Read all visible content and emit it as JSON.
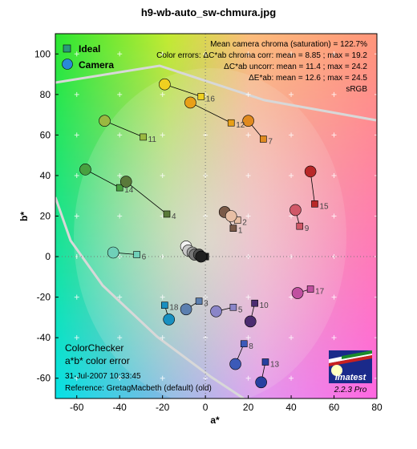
{
  "title": "h9-wb-auto_sw-chmura.jpg",
  "legend": {
    "ideal_label": "Ideal",
    "camera_label": "Camera"
  },
  "stats": {
    "line1": "Mean camera chroma (saturation) = 122.7%",
    "line2": "Color errors: ΔC*ab chroma corr:  mean = 8.85 ;  max = 19.2",
    "line3": "ΔC*ab uncorr:  mean = 11.4 ;  max = 24.2",
    "line4": "ΔE*ab:  mean = 12.6 ;  max = 24.5",
    "line5": "sRGB"
  },
  "bottom_text": {
    "line1": "ColorChecker",
    "line2": "a*b* color error",
    "date": "31-Jul-2007 10:33:45",
    "reference": "Reference: GretagMacbeth (default) (old)"
  },
  "logo": {
    "name": "Imatest",
    "version": "2.2.3  Pro"
  },
  "chart_data": {
    "type": "scatter",
    "title": "h9-wb-auto_sw-chmura.jpg",
    "xlabel": "a*",
    "ylabel": "b*",
    "xlim": [
      -70,
      80
    ],
    "ylim": [
      -70,
      110
    ],
    "x_ticks": [
      -60,
      -40,
      -20,
      0,
      20,
      40,
      60,
      80
    ],
    "y_ticks": [
      -60,
      -40,
      -20,
      0,
      20,
      40,
      60,
      80,
      100
    ],
    "grid": "dotted cross markers",
    "legend_position": "top-left",
    "series": [
      {
        "name": "Ideal",
        "marker": "square"
      },
      {
        "name": "Camera",
        "marker": "circle"
      }
    ],
    "patches": [
      {
        "id": "1",
        "ideal": [
          13,
          14
        ],
        "camera": [
          9,
          22
        ],
        "color": "#7a5a48"
      },
      {
        "id": "2",
        "ideal": [
          15,
          18
        ],
        "camera": [
          12,
          20
        ],
        "color": "#e8bfa5"
      },
      {
        "id": "3",
        "ideal": [
          -3,
          -22
        ],
        "camera": [
          -9,
          -26
        ],
        "color": "#5b7fb0"
      },
      {
        "id": "4",
        "ideal": [
          -18,
          21
        ],
        "camera": [
          -37,
          37
        ],
        "color": "#5a7a3a"
      },
      {
        "id": "5",
        "ideal": [
          13,
          -25
        ],
        "camera": [
          5,
          -27
        ],
        "color": "#8a85c8"
      },
      {
        "id": "6",
        "ideal": [
          -32,
          1
        ],
        "camera": [
          -43,
          2
        ],
        "color": "#6fd0b8"
      },
      {
        "id": "7",
        "ideal": [
          27,
          58
        ],
        "camera": [
          20,
          67
        ],
        "color": "#e08a20"
      },
      {
        "id": "8",
        "ideal": [
          18,
          -43
        ],
        "camera": [
          14,
          -53
        ],
        "color": "#3c5ab8"
      },
      {
        "id": "9",
        "ideal": [
          44,
          15
        ],
        "camera": [
          42,
          23
        ],
        "color": "#d05868"
      },
      {
        "id": "10",
        "ideal": [
          23,
          -23
        ],
        "camera": [
          21,
          -32
        ],
        "color": "#4c2c70"
      },
      {
        "id": "11",
        "ideal": [
          -29,
          59
        ],
        "camera": [
          -47,
          67
        ],
        "color": "#9ab840"
      },
      {
        "id": "12",
        "ideal": [
          12,
          66
        ],
        "camera": [
          -7,
          76
        ],
        "color": "#e8a018"
      },
      {
        "id": "13",
        "ideal": [
          28,
          -52
        ],
        "camera": [
          26,
          -62
        ],
        "color": "#2840a0"
      },
      {
        "id": "14",
        "ideal": [
          -40,
          34
        ],
        "camera": [
          -56,
          43
        ],
        "color": "#48a040"
      },
      {
        "id": "15",
        "ideal": [
          51,
          26
        ],
        "camera": [
          49,
          42
        ],
        "color": "#b82828"
      },
      {
        "id": "16",
        "ideal": [
          -2,
          79
        ],
        "camera": [
          -19,
          85
        ],
        "color": "#f0d020"
      },
      {
        "id": "17",
        "ideal": [
          49,
          -16
        ],
        "camera": [
          43,
          -18
        ],
        "color": "#c050a0"
      },
      {
        "id": "18",
        "ideal": [
          -19,
          -24
        ],
        "camera": [
          -17,
          -31
        ],
        "color": "#1890c0"
      },
      {
        "id": "19",
        "ideal": [
          0,
          0
        ],
        "camera": [
          -9,
          5
        ],
        "color": "#f2f2f2"
      },
      {
        "id": "20",
        "ideal": [
          0,
          0
        ],
        "camera": [
          -8,
          3
        ],
        "color": "#c8c8c8"
      },
      {
        "id": "21",
        "ideal": [
          0,
          0
        ],
        "camera": [
          -6,
          2
        ],
        "color": "#a0a0a0"
      },
      {
        "id": "22",
        "ideal": [
          0,
          0
        ],
        "camera": [
          -5,
          1
        ],
        "color": "#787878"
      },
      {
        "id": "23",
        "ideal": [
          0,
          0
        ],
        "camera": [
          -3,
          1
        ],
        "color": "#505050"
      },
      {
        "id": "24",
        "ideal": [
          0,
          0
        ],
        "camera": [
          -2,
          0
        ],
        "color": "#202020"
      }
    ],
    "labeled_ids": [
      "1",
      "2",
      "3",
      "4",
      "5",
      "6",
      "7",
      "8",
      "9",
      "10",
      "11",
      "12",
      "13",
      "14",
      "15",
      "16",
      "17",
      "18"
    ]
  }
}
